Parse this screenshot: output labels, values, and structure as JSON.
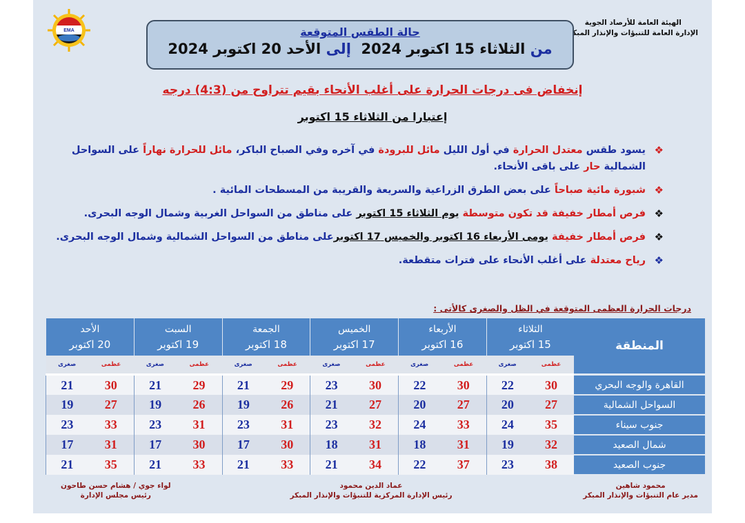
{
  "org": {
    "line1": "الهيئة العامة للأرصاد الجوية",
    "line2": "الإدارة العامة للتنبؤات والإنذار المبكر"
  },
  "logo": {
    "text": "EMA"
  },
  "title": {
    "heading": "حالة الطقس المتوقعة",
    "from_word": "من",
    "from_date": "الثلاثاء 15 اكتوبر 2024",
    "to_word": "إلى",
    "to_date": "الأحد 20 اكتوبر 2024"
  },
  "headline": "إنخفاض فى درجات الحرارة على أغلب الأنحاء بقيم تتراوح من (4:3) درجه",
  "subheadline": "إعتبارا من الثلاثاء 15 اكتوبر",
  "colors": {
    "red": "#d21f1f",
    "blue": "#1c2fa0",
    "black": "#111111",
    "header_blue": "#4f86c6"
  },
  "bullets": [
    {
      "marker_color": "#d21f1f",
      "segments": [
        {
          "text": "يسود طقس ",
          "color": "#1c2fa0"
        },
        {
          "text": "معتدل الحرارة",
          "color": "#d21f1f"
        },
        {
          "text": " في أول الليل ",
          "color": "#1c2fa0"
        },
        {
          "text": "مائل للبرودة",
          "color": "#d21f1f"
        },
        {
          "text": " في آخره وفي الصباح الباكر، ",
          "color": "#1c2fa0"
        },
        {
          "text": "مائل للحرارة نهاراً",
          "color": "#d21f1f"
        },
        {
          "text": " على السواحل الشمالية ",
          "color": "#1c2fa0"
        },
        {
          "text": "حار",
          "color": "#d21f1f"
        },
        {
          "text": " على باقى الأنحاء.",
          "color": "#1c2fa0"
        }
      ]
    },
    {
      "marker_color": "#d21f1f",
      "segments": [
        {
          "text": "شبورة مائية صباحاً",
          "color": "#d21f1f"
        },
        {
          "text": " على بعض الطرق الزراعية والسريعة والقريبة من المسطحات المائية .",
          "color": "#1c2fa0"
        }
      ]
    },
    {
      "marker_color": "#111111",
      "segments": [
        {
          "text": "فرص أمطار خفيفة قد تكون متوسطة ",
          "color": "#d21f1f"
        },
        {
          "text": "يوم الثلاثاء 15 اكتوبر",
          "color": "#111111",
          "underline": true
        },
        {
          "text": " على مناطق من السواحل الغربية وشمال الوجه البحرى.",
          "color": "#1c2fa0"
        }
      ]
    },
    {
      "marker_color": "#111111",
      "segments": [
        {
          "text": "فرص أمطار خفيفة ",
          "color": "#d21f1f"
        },
        {
          "text": "يومى الأربعاء 16 اكتوبر والخميس 17 اكتوبر",
          "color": "#111111",
          "underline": true
        },
        {
          "text": "على مناطق من السواحل الشمالية وشمال الوجه البحرى.",
          "color": "#1c2fa0"
        }
      ]
    },
    {
      "marker_color": "#1c2fa0",
      "segments": [
        {
          "text": "رياح معتدلة",
          "color": "#d21f1f"
        },
        {
          "text": " على أغلب الأنحاء على فترات متقطعة.",
          "color": "#1c2fa0"
        }
      ]
    }
  ],
  "table": {
    "title": "درجات الحرارة العظمى المتوقعة في الظل والصغرى كالأتى :",
    "region_header": "المنطقة",
    "max_label": "عظمى",
    "min_label": "صغرى",
    "days": [
      {
        "day": "الثلاثاء",
        "date": "15 اكتوبر"
      },
      {
        "day": "الأربعاء",
        "date": "16 اكتوبر"
      },
      {
        "day": "الخميس",
        "date": "17 اكتوبر"
      },
      {
        "day": "الجمعة",
        "date": "18 اكتوبر"
      },
      {
        "day": "السبت",
        "date": "19 اكتوبر"
      },
      {
        "day": "الأحد",
        "date": "20 اكتوبر"
      }
    ],
    "rows": [
      {
        "region": "القاهرة والوجه البحري",
        "values": [
          [
            30,
            22
          ],
          [
            30,
            22
          ],
          [
            30,
            23
          ],
          [
            29,
            21
          ],
          [
            29,
            21
          ],
          [
            30,
            21
          ]
        ]
      },
      {
        "region": "السواحل الشمالية",
        "values": [
          [
            27,
            20
          ],
          [
            27,
            20
          ],
          [
            27,
            21
          ],
          [
            26,
            19
          ],
          [
            26,
            19
          ],
          [
            27,
            19
          ]
        ]
      },
      {
        "region": "جنوب سيناء",
        "values": [
          [
            35,
            24
          ],
          [
            33,
            24
          ],
          [
            32,
            23
          ],
          [
            31,
            23
          ],
          [
            31,
            23
          ],
          [
            33,
            23
          ]
        ]
      },
      {
        "region": "شمال الصعيد",
        "values": [
          [
            32,
            19
          ],
          [
            31,
            18
          ],
          [
            31,
            18
          ],
          [
            30,
            17
          ],
          [
            30,
            17
          ],
          [
            31,
            17
          ]
        ]
      },
      {
        "region": "جنوب الصعيد",
        "values": [
          [
            38,
            23
          ],
          [
            37,
            22
          ],
          [
            34,
            21
          ],
          [
            33,
            21
          ],
          [
            33,
            21
          ],
          [
            35,
            21
          ]
        ]
      }
    ]
  },
  "signatures": [
    {
      "name": "محمود شاهين",
      "title": "مدير عام التنبؤات والإنذار المبكر"
    },
    {
      "name": "عماد الدين محمود",
      "title": "رئيس الإدارة المركزية للتنبؤات والإنذار المبكر"
    },
    {
      "name": "لواء جوي / هشام حسن طاحون",
      "title": "رئيس مجلس الإدارة"
    }
  ]
}
